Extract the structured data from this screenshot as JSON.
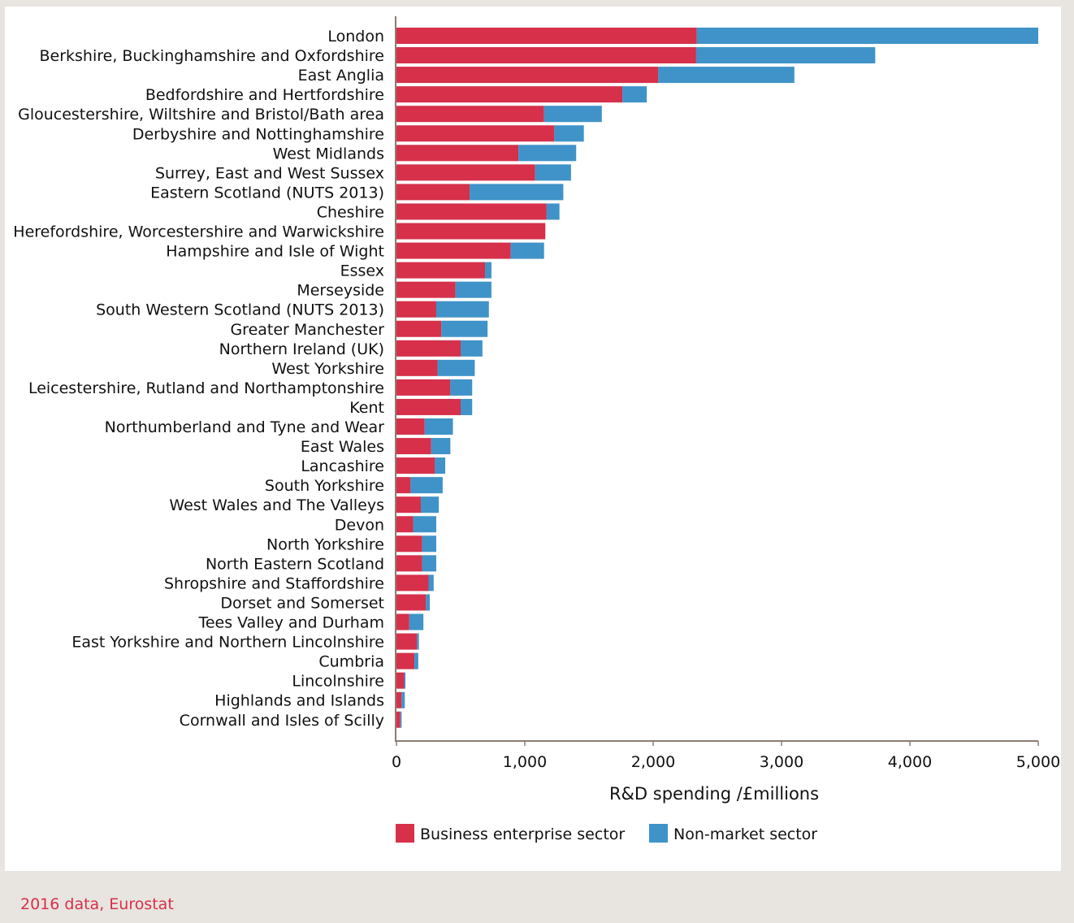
{
  "chart_data": {
    "type": "bar",
    "orientation": "horizontal",
    "stacked": true,
    "xlabel": "R&D spending /£millions",
    "xlim": [
      0,
      5000
    ],
    "xticks": [
      0,
      1000,
      2000,
      3000,
      4000,
      5000
    ],
    "xtick_labels": [
      "0",
      "1,000",
      "2,000",
      "3,000",
      "4,000",
      "5,000"
    ],
    "legend_placement": "bottom",
    "grid": false,
    "categories": [
      "London",
      "Berkshire, Buckinghamshire and Oxfordshire",
      "East Anglia",
      "Bedfordshire and Hertfordshire",
      "Gloucestershire, Wiltshire and Bristol/Bath area",
      "Derbyshire and Nottinghamshire",
      "West Midlands",
      "Surrey, East and West Sussex",
      "Eastern Scotland (NUTS 2013)",
      "Cheshire",
      "Herefordshire, Worcestershire and Warwickshire",
      "Hampshire and Isle of Wight",
      "Essex",
      "Merseyside",
      "South Western Scotland (NUTS 2013)",
      "Greater Manchester",
      "Northern Ireland (UK)",
      "West Yorkshire",
      "Leicestershire, Rutland and Northamptonshire",
      "Kent",
      "Northumberland and Tyne and Wear",
      "East Wales",
      "Lancashire",
      "South Yorkshire",
      "West Wales and The Valleys",
      "Devon",
      "North Yorkshire",
      "North Eastern Scotland",
      "Shropshire and Staffordshire",
      "Dorset and Somerset",
      "Tees Valley and Durham",
      "East Yorkshire and Northern Lincolnshire",
      "Cumbria",
      "Lincolnshire",
      "Highlands and Islands",
      "Cornwall and Isles of Scilly"
    ],
    "series": [
      {
        "name": "Business enterprise sector",
        "color": "#d6304b",
        "values": [
          2340,
          2335,
          2040,
          1760,
          1150,
          1230,
          950,
          1080,
          570,
          1170,
          1160,
          890,
          690,
          460,
          310,
          350,
          500,
          320,
          420,
          500,
          220,
          270,
          300,
          110,
          190,
          130,
          200,
          200,
          250,
          230,
          100,
          160,
          140,
          60,
          40,
          30
        ]
      },
      {
        "name": "Non-market sector",
        "color": "#3f93c8",
        "values": [
          2660,
          1395,
          1060,
          190,
          450,
          230,
          450,
          280,
          730,
          100,
          0,
          260,
          50,
          280,
          410,
          360,
          170,
          290,
          170,
          90,
          220,
          150,
          80,
          250,
          140,
          180,
          110,
          110,
          40,
          30,
          110,
          15,
          30,
          10,
          25,
          10
        ]
      }
    ]
  },
  "source_note": "2016 data, Eurostat"
}
